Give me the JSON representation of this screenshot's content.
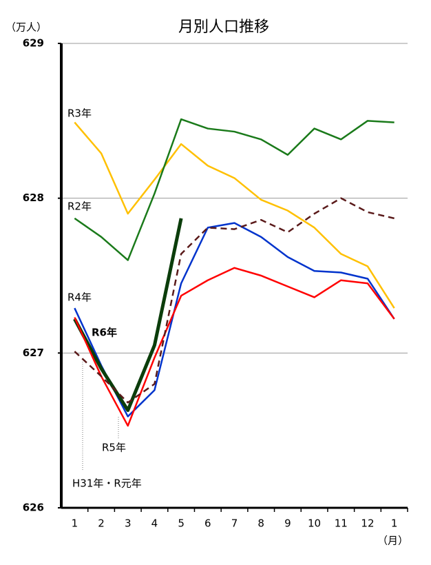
{
  "chart_data": {
    "type": "line",
    "title": "月別人口推移",
    "y_unit": "（万人）",
    "x_unit": "（月）",
    "categories": [
      "1",
      "2",
      "3",
      "4",
      "5",
      "6",
      "7",
      "8",
      "9",
      "10",
      "11",
      "12",
      "1"
    ],
    "ylim": [
      626,
      629
    ],
    "yticks": [
      626,
      627,
      628,
      629
    ],
    "grid": true,
    "series": [
      {
        "name": "R3年",
        "color": "#ffc000",
        "values": [
          628.49,
          628.29,
          627.9,
          628.12,
          628.35,
          628.21,
          628.13,
          627.99,
          627.92,
          627.81,
          627.64,
          627.56,
          627.29
        ]
      },
      {
        "name": "R2年",
        "color": "#1a7a1a",
        "values": [
          627.87,
          627.75,
          627.6,
          628.03,
          628.51,
          628.45,
          628.43,
          628.38,
          628.28,
          628.45,
          628.38,
          628.5,
          628.49
        ]
      },
      {
        "name": "R4年",
        "color": "#0033cc",
        "values": [
          627.29,
          626.92,
          626.59,
          626.76,
          627.45,
          627.81,
          627.84,
          627.75,
          627.62,
          627.53,
          627.52,
          627.48,
          627.22
        ]
      },
      {
        "name": "R6年",
        "color": "#0b3d0b",
        "bold": true,
        "values": [
          627.22,
          626.9,
          626.63,
          627.05,
          627.87,
          null,
          null,
          null,
          null,
          null,
          null,
          null,
          null
        ]
      },
      {
        "name": "R5年",
        "color": "#ff0000",
        "values": [
          627.23,
          626.85,
          626.53,
          626.97,
          627.37,
          627.47,
          627.55,
          627.5,
          627.43,
          627.36,
          627.47,
          627.45,
          627.22
        ]
      },
      {
        "name": "H31年・R元年",
        "color": "#5a1a1a",
        "dashed": true,
        "values": [
          627.01,
          626.85,
          626.68,
          626.8,
          627.64,
          627.81,
          627.8,
          627.86,
          627.78,
          627.9,
          628.0,
          627.91,
          627.87
        ]
      }
    ]
  }
}
